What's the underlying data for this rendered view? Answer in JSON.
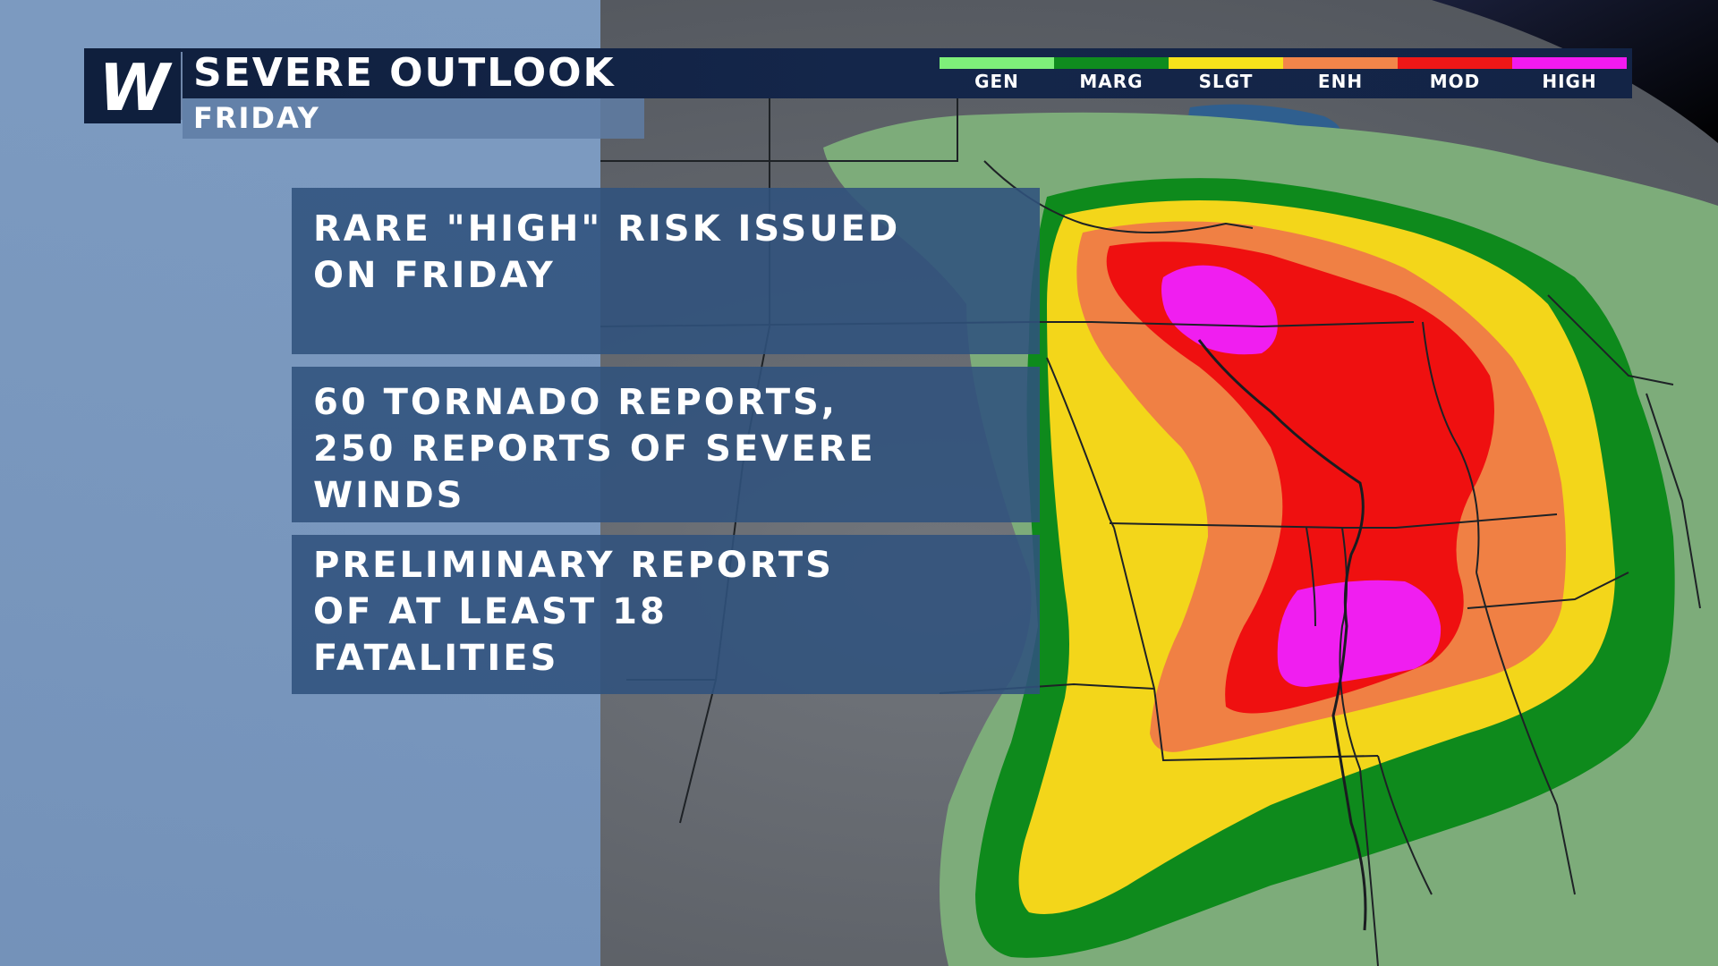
{
  "header": {
    "logo_letter": "W",
    "title": "SEVERE OUTLOOK",
    "subtitle": "FRIDAY"
  },
  "legend": {
    "items": [
      {
        "label": "GEN",
        "color": "#7ef07a"
      },
      {
        "label": "MARG",
        "color": "#0f8c1e"
      },
      {
        "label": "SLGT",
        "color": "#f6e21b"
      },
      {
        "label": "ENH",
        "color": "#f2854a"
      },
      {
        "label": "MOD",
        "color": "#ef1717"
      },
      {
        "label": "HIGH",
        "color": "#f21af0"
      }
    ]
  },
  "info_boxes": [
    {
      "text": "RARE \"HIGH\" RISK ISSUED\nON FRIDAY"
    },
    {
      "text": "60 TORNADO REPORTS,\n250 REPORTS OF SEVERE\nWINDS"
    },
    {
      "text": "PRELIMINARY REPORTS\nOF AT LEAST 18\nFATALITIES"
    }
  ],
  "map_colors": {
    "general": "#7dac7a",
    "marginal": "#0e8a1c",
    "slight": "#f3d61a",
    "enhanced": "#f08044",
    "moderate": "#ef1010",
    "high": "#f01ef0",
    "land": "#5c6066",
    "water": "#2f5f8f"
  }
}
